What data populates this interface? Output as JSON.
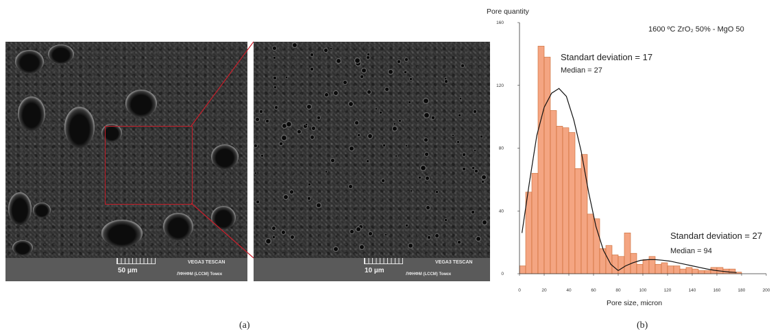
{
  "panels": {
    "left_label": "(a)",
    "right_label": "(b)"
  },
  "sem_left": {
    "scale_label": "50 µm",
    "brand": "VEGA3 TESCAN",
    "lab": "ЛФНФМ (LCCM) Томск"
  },
  "sem_right": {
    "scale_label": "10 µm",
    "brand": "VEGA3 TESCAN",
    "lab": "ЛФНФМ (LCCM) Томск"
  },
  "colors": {
    "bar_fill": "#f4a582",
    "bar_stroke": "#c8672f",
    "zoom_box": "#c81e2a",
    "curve": "#111111"
  },
  "chart_data": {
    "type": "bar",
    "title": "1600 ºC ZrO₂ 50% - MgO 50",
    "ylabel": "Pore quantity",
    "xlabel": "Pore size, micron",
    "xlim": [
      0,
      200
    ],
    "ylim": [
      0,
      160
    ],
    "x_ticks": [
      0,
      20,
      40,
      60,
      80,
      100,
      120,
      140,
      160,
      180,
      200
    ],
    "y_ticks": [
      0,
      40,
      80,
      120,
      160
    ],
    "bin_width": 5,
    "bins_start": [
      0,
      5,
      10,
      15,
      20,
      25,
      30,
      35,
      40,
      45,
      50,
      55,
      60,
      65,
      70,
      75,
      80,
      85,
      90,
      95,
      100,
      105,
      110,
      115,
      120,
      125,
      130,
      135,
      140,
      145,
      150,
      155,
      160,
      165,
      170,
      175
    ],
    "values": [
      5,
      52,
      64,
      145,
      138,
      104,
      94,
      93,
      90,
      67,
      76,
      38,
      35,
      16,
      18,
      12,
      11,
      26,
      13,
      6,
      9,
      11,
      6,
      7,
      5,
      5,
      3,
      4,
      3,
      2,
      2,
      4,
      4,
      3,
      3,
      1
    ],
    "curves": [
      {
        "x": [
          2,
          8,
          14,
          20,
          26,
          32,
          38,
          44,
          50,
          56,
          62,
          68,
          74,
          80
        ],
        "y": [
          26,
          58,
          88,
          106,
          115,
          118,
          113,
          98,
          78,
          52,
          30,
          15,
          6,
          2
        ]
      },
      {
        "x": [
          80,
          86,
          92,
          98,
          104,
          110,
          116,
          122,
          128,
          134,
          140,
          146,
          152,
          158,
          164,
          170,
          176
        ],
        "y": [
          2,
          5,
          7,
          8.5,
          9,
          9,
          8.6,
          8,
          7,
          6,
          5,
          4,
          3,
          2.2,
          1.6,
          1.1,
          0.8
        ]
      }
    ],
    "annotations": [
      {
        "label": "Standart deviation = 17",
        "sub": "Median = 27"
      },
      {
        "label": "Standart deviation = 27",
        "sub": "Median = 94"
      }
    ]
  }
}
